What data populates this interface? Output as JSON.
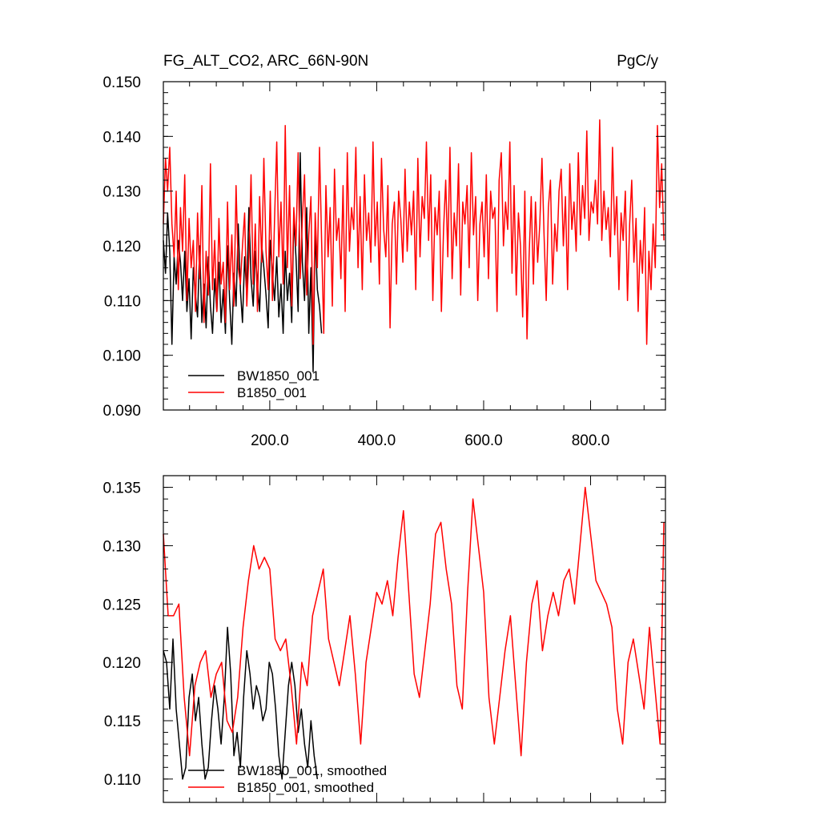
{
  "chart_data": [
    {
      "type": "line",
      "title_left": "FG_ALT_CO2, ARC_66N-90N",
      "title_right": "PgC/y",
      "xlim": [
        1,
        940
      ],
      "ylim": [
        0.09,
        0.15
      ],
      "x_ticks": [
        200,
        400,
        600,
        800
      ],
      "x_tick_labels": [
        "200.0",
        "400.0",
        "600.0",
        "800.0"
      ],
      "y_ticks": [
        0.09,
        0.1,
        0.11,
        0.12,
        0.13,
        0.14,
        0.15
      ],
      "y_tick_labels": [
        "0.090",
        "0.100",
        "0.110",
        "0.120",
        "0.130",
        "0.140",
        "0.150"
      ],
      "legend_position": "bottom-left",
      "series": [
        {
          "name": "BW1850_001",
          "color": "#000000",
          "x": [
            1,
            5,
            9,
            13,
            17,
            21,
            25,
            29,
            33,
            37,
            41,
            45,
            49,
            53,
            57,
            61,
            65,
            69,
            73,
            77,
            81,
            85,
            89,
            93,
            97,
            101,
            105,
            109,
            113,
            117,
            121,
            125,
            129,
            133,
            137,
            141,
            145,
            149,
            153,
            157,
            161,
            165,
            169,
            173,
            177,
            181,
            185,
            189,
            193,
            197,
            201,
            205,
            209,
            213,
            217,
            221,
            225,
            229,
            233,
            237,
            241,
            245,
            249,
            253,
            257,
            261,
            265,
            269,
            273,
            277,
            281,
            285,
            289,
            293,
            297
          ],
          "values": [
            0.121,
            0.115,
            0.126,
            0.119,
            0.102,
            0.118,
            0.113,
            0.121,
            0.117,
            0.11,
            0.119,
            0.108,
            0.114,
            0.103,
            0.116,
            0.111,
            0.107,
            0.12,
            0.106,
            0.113,
            0.105,
            0.118,
            0.109,
            0.104,
            0.114,
            0.108,
            0.117,
            0.106,
            0.112,
            0.104,
            0.12,
            0.11,
            0.102,
            0.115,
            0.109,
            0.124,
            0.112,
            0.106,
            0.118,
            0.111,
            0.127,
            0.114,
            0.109,
            0.119,
            0.113,
            0.108,
            0.12,
            0.116,
            0.111,
            0.105,
            0.121,
            0.115,
            0.11,
            0.118,
            0.107,
            0.113,
            0.104,
            0.119,
            0.11,
            0.115,
            0.106,
            0.125,
            0.118,
            0.108,
            0.137,
            0.117,
            0.11,
            0.127,
            0.104,
            0.116,
            0.097,
            0.123,
            0.112,
            0.109,
            0.104
          ]
        },
        {
          "name": "B1850_001",
          "color": "#ff0000",
          "x": [
            1,
            5,
            9,
            13,
            17,
            21,
            25,
            29,
            33,
            37,
            41,
            45,
            49,
            53,
            57,
            61,
            65,
            69,
            73,
            77,
            81,
            85,
            89,
            93,
            97,
            101,
            105,
            109,
            113,
            117,
            121,
            125,
            129,
            133,
            137,
            141,
            145,
            149,
            153,
            157,
            161,
            165,
            169,
            173,
            177,
            181,
            185,
            189,
            193,
            197,
            201,
            205,
            209,
            213,
            217,
            221,
            225,
            229,
            233,
            237,
            241,
            245,
            249,
            253,
            257,
            261,
            265,
            269,
            273,
            277,
            281,
            285,
            289,
            293,
            297,
            301,
            305,
            309,
            313,
            317,
            321,
            325,
            329,
            333,
            337,
            341,
            345,
            349,
            353,
            357,
            361,
            365,
            369,
            373,
            377,
            381,
            385,
            389,
            393,
            397,
            401,
            405,
            409,
            413,
            417,
            421,
            425,
            429,
            433,
            437,
            441,
            445,
            449,
            453,
            457,
            461,
            465,
            469,
            473,
            477,
            481,
            485,
            489,
            493,
            497,
            501,
            505,
            509,
            513,
            517,
            521,
            525,
            529,
            533,
            537,
            541,
            545,
            549,
            553,
            557,
            561,
            565,
            569,
            573,
            577,
            581,
            585,
            589,
            593,
            597,
            601,
            605,
            609,
            613,
            617,
            621,
            625,
            629,
            633,
            637,
            641,
            645,
            649,
            653,
            657,
            661,
            665,
            669,
            673,
            677,
            681,
            685,
            689,
            693,
            697,
            701,
            705,
            709,
            713,
            717,
            721,
            725,
            729,
            733,
            737,
            741,
            745,
            749,
            753,
            757,
            761,
            765,
            769,
            773,
            777,
            781,
            785,
            789,
            793,
            797,
            801,
            805,
            809,
            813,
            817,
            821,
            825,
            829,
            833,
            837,
            841,
            845,
            849,
            853,
            857,
            861,
            865,
            869,
            873,
            877,
            881,
            885,
            889,
            893,
            897,
            901,
            905,
            909,
            913,
            917,
            921,
            925,
            929,
            933,
            937
          ],
          "values": [
            0.124,
            0.136,
            0.13,
            0.138,
            0.124,
            0.118,
            0.13,
            0.112,
            0.127,
            0.119,
            0.133,
            0.11,
            0.125,
            0.116,
            0.121,
            0.108,
            0.126,
            0.114,
            0.131,
            0.106,
            0.119,
            0.111,
            0.135,
            0.112,
            0.121,
            0.108,
            0.125,
            0.113,
            0.117,
            0.106,
            0.128,
            0.112,
            0.122,
            0.109,
            0.131,
            0.116,
            0.113,
            0.12,
            0.126,
            0.109,
            0.118,
            0.133,
            0.113,
            0.124,
            0.108,
            0.129,
            0.117,
            0.136,
            0.119,
            0.112,
            0.13,
            0.11,
            0.125,
            0.139,
            0.118,
            0.128,
            0.113,
            0.142,
            0.116,
            0.131,
            0.109,
            0.127,
            0.12,
            0.137,
            0.114,
            0.125,
            0.133,
            0.111,
            0.122,
            0.129,
            0.102,
            0.126,
            0.116,
            0.138,
            0.121,
            0.104,
            0.131,
            0.118,
            0.127,
            0.109,
            0.134,
            0.121,
            0.125,
            0.114,
            0.131,
            0.108,
            0.137,
            0.119,
            0.127,
            0.123,
            0.138,
            0.116,
            0.129,
            0.112,
            0.133,
            0.121,
            0.126,
            0.117,
            0.139,
            0.12,
            0.128,
            0.113,
            0.136,
            0.123,
            0.118,
            0.131,
            0.105,
            0.124,
            0.128,
            0.113,
            0.13,
            0.125,
            0.117,
            0.134,
            0.119,
            0.128,
            0.122,
            0.13,
            0.112,
            0.136,
            0.118,
            0.129,
            0.125,
            0.139,
            0.121,
            0.133,
            0.11,
            0.127,
            0.122,
            0.13,
            0.108,
            0.123,
            0.132,
            0.118,
            0.138,
            0.114,
            0.126,
            0.12,
            0.135,
            0.111,
            0.128,
            0.124,
            0.131,
            0.116,
            0.137,
            0.122,
            0.129,
            0.11,
            0.124,
            0.128,
            0.118,
            0.133,
            0.114,
            0.13,
            0.125,
            0.127,
            0.108,
            0.132,
            0.137,
            0.12,
            0.128,
            0.123,
            0.139,
            0.115,
            0.131,
            0.111,
            0.126,
            0.12,
            0.107,
            0.13,
            0.103,
            0.118,
            0.129,
            0.113,
            0.128,
            0.117,
            0.124,
            0.136,
            0.122,
            0.11,
            0.127,
            0.132,
            0.113,
            0.124,
            0.119,
            0.13,
            0.134,
            0.12,
            0.129,
            0.112,
            0.135,
            0.123,
            0.128,
            0.119,
            0.137,
            0.122,
            0.131,
            0.125,
            0.141,
            0.121,
            0.128,
            0.126,
            0.132,
            0.124,
            0.143,
            0.121,
            0.13,
            0.123,
            0.127,
            0.118,
            0.138,
            0.122,
            0.129,
            0.112,
            0.126,
            0.121,
            0.13,
            0.11,
            0.124,
            0.132,
            0.117,
            0.125,
            0.108,
            0.121,
            0.115,
            0.127,
            0.102,
            0.119,
            0.112,
            0.124,
            0.116,
            0.142,
            0.127,
            0.135,
            0.121
          ]
        }
      ]
    },
    {
      "type": "line",
      "xlim": [
        1,
        940
      ],
      "ylim": [
        0.108,
        0.136
      ],
      "x_ticks": [
        200,
        400,
        600,
        800
      ],
      "y_ticks": [
        0.11,
        0.115,
        0.12,
        0.125,
        0.13,
        0.135
      ],
      "y_tick_labels": [
        "0.110",
        "0.115",
        "0.120",
        "0.125",
        "0.130",
        "0.135"
      ],
      "legend_position": "bottom-left",
      "series": [
        {
          "name": "BW1850_001, smoothed",
          "color": "#000000",
          "x": [
            1,
            7,
            13,
            19,
            25,
            31,
            37,
            43,
            49,
            55,
            61,
            67,
            73,
            79,
            85,
            91,
            97,
            103,
            109,
            115,
            121,
            127,
            133,
            139,
            145,
            151,
            157,
            163,
            169,
            175,
            181,
            187,
            193,
            199,
            205,
            211,
            217,
            223,
            229,
            235,
            241,
            247,
            253,
            259,
            265,
            271,
            277,
            283,
            289
          ],
          "values": [
            0.121,
            0.12,
            0.116,
            0.122,
            0.116,
            0.113,
            0.11,
            0.111,
            0.117,
            0.119,
            0.115,
            0.117,
            0.113,
            0.11,
            0.111,
            0.115,
            0.118,
            0.116,
            0.113,
            0.117,
            0.123,
            0.119,
            0.112,
            0.114,
            0.111,
            0.117,
            0.121,
            0.119,
            0.116,
            0.118,
            0.117,
            0.115,
            0.116,
            0.12,
            0.119,
            0.116,
            0.112,
            0.11,
            0.114,
            0.118,
            0.12,
            0.118,
            0.114,
            0.116,
            0.113,
            0.111,
            0.115,
            0.112,
            0.11
          ]
        },
        {
          "name": "B1850_001, smoothed",
          "color": "#ff0000",
          "x": [
            1,
            10,
            20,
            30,
            40,
            50,
            60,
            70,
            80,
            90,
            100,
            110,
            120,
            130,
            140,
            150,
            160,
            170,
            180,
            190,
            200,
            210,
            220,
            230,
            240,
            250,
            260,
            270,
            280,
            290,
            300,
            310,
            320,
            330,
            340,
            350,
            360,
            370,
            380,
            390,
            400,
            410,
            420,
            430,
            440,
            450,
            460,
            470,
            480,
            490,
            500,
            510,
            520,
            530,
            540,
            550,
            560,
            570,
            580,
            590,
            600,
            610,
            620,
            630,
            640,
            650,
            660,
            670,
            680,
            690,
            700,
            710,
            720,
            730,
            740,
            750,
            760,
            770,
            780,
            790,
            800,
            810,
            820,
            830,
            840,
            850,
            860,
            870,
            880,
            890,
            900,
            910,
            920,
            930,
            937
          ],
          "values": [
            0.131,
            0.124,
            0.124,
            0.125,
            0.117,
            0.112,
            0.118,
            0.12,
            0.121,
            0.117,
            0.119,
            0.12,
            0.115,
            0.114,
            0.117,
            0.123,
            0.127,
            0.13,
            0.128,
            0.129,
            0.128,
            0.122,
            0.121,
            0.122,
            0.118,
            0.113,
            0.12,
            0.118,
            0.124,
            0.126,
            0.128,
            0.122,
            0.12,
            0.118,
            0.121,
            0.124,
            0.119,
            0.113,
            0.12,
            0.123,
            0.126,
            0.125,
            0.127,
            0.124,
            0.129,
            0.133,
            0.126,
            0.119,
            0.117,
            0.121,
            0.125,
            0.131,
            0.132,
            0.128,
            0.125,
            0.118,
            0.116,
            0.126,
            0.134,
            0.13,
            0.126,
            0.117,
            0.113,
            0.117,
            0.121,
            0.124,
            0.118,
            0.112,
            0.12,
            0.125,
            0.127,
            0.121,
            0.124,
            0.126,
            0.124,
            0.127,
            0.128,
            0.125,
            0.13,
            0.135,
            0.131,
            0.127,
            0.126,
            0.125,
            0.123,
            0.116,
            0.113,
            0.12,
            0.122,
            0.119,
            0.116,
            0.123,
            0.118,
            0.113,
            0.132
          ]
        }
      ]
    }
  ]
}
